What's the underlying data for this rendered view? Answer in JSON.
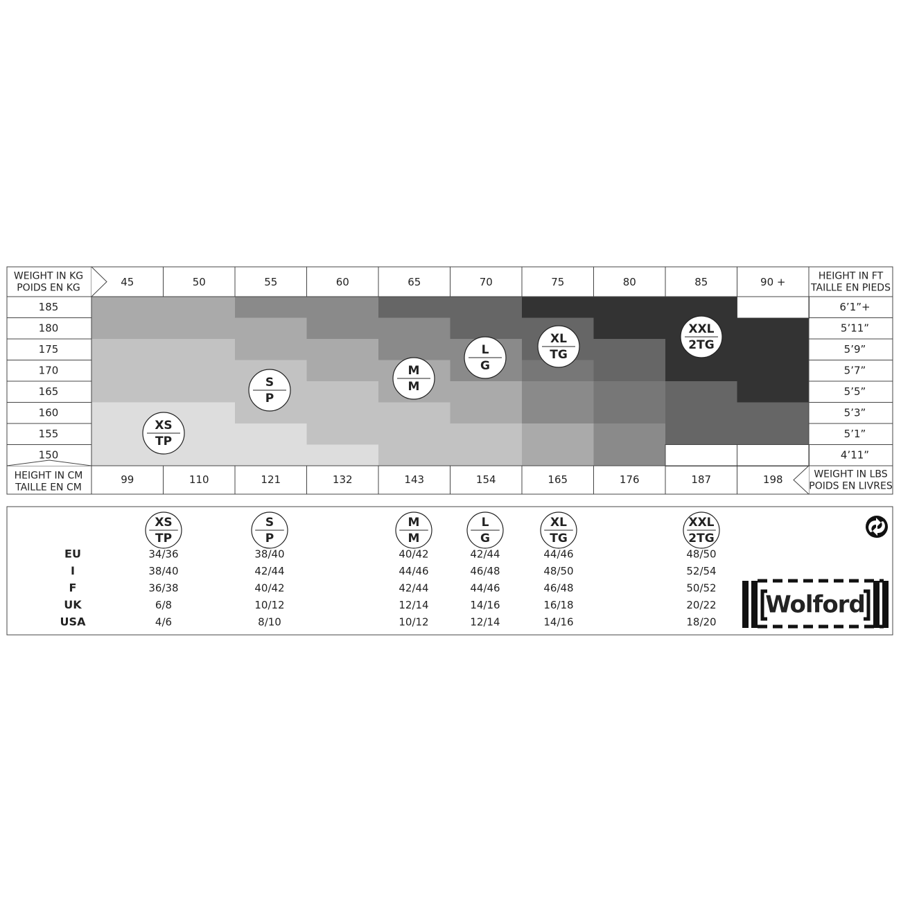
{
  "weight_table": {
    "header_left": [
      "WEIGHT IN KG",
      "POIDS EN KG"
    ],
    "header_right": [
      "HEIGHT IN FT",
      "TAILLE EN PIEDS"
    ],
    "kg": [
      "45",
      "50",
      "55",
      "60",
      "65",
      "70",
      "75",
      "80",
      "85",
      "90 +"
    ],
    "cm": [
      "185",
      "180",
      "175",
      "170",
      "165",
      "160",
      "155",
      "150"
    ],
    "ft": [
      "6’1”+",
      "5’11”",
      "5’9”",
      "5’7”",
      "5’5”",
      "5’3”",
      "5’1”",
      "4’11”"
    ],
    "footer_left": [
      "HEIGHT IN CM",
      "TAILLE EN CM"
    ],
    "lbs": [
      "99",
      "110",
      "121",
      "132",
      "143",
      "154",
      "165",
      "176",
      "187",
      "198"
    ],
    "footer_right": [
      "WEIGHT IN LBS",
      "POIDS EN LIVRES"
    ]
  },
  "sizes": [
    {
      "top": "XS",
      "bottom": "TP"
    },
    {
      "top": "S",
      "bottom": "P"
    },
    {
      "top": "M",
      "bottom": "M"
    },
    {
      "top": "L",
      "bottom": "G"
    },
    {
      "top": "XL",
      "bottom": "TG"
    },
    {
      "top": "XXL",
      "bottom": "2TG"
    }
  ],
  "conversion": {
    "rows": [
      {
        "label": "EU",
        "values": [
          "34/36",
          "38/40",
          "40/42",
          "42/44",
          "44/46",
          "48/50"
        ]
      },
      {
        "label": "I",
        "values": [
          "38/40",
          "42/44",
          "44/46",
          "46/48",
          "48/50",
          "52/54"
        ]
      },
      {
        "label": "F",
        "values": [
          "36/38",
          "40/42",
          "42/44",
          "44/46",
          "46/48",
          "50/52"
        ]
      },
      {
        "label": "UK",
        "values": [
          "6/8",
          "10/12",
          "12/14",
          "14/16",
          "16/18",
          "20/22"
        ]
      },
      {
        "label": "USA",
        "values": [
          "4/6",
          "8/10",
          "10/12",
          "12/14",
          "14/16",
          "18/20"
        ]
      }
    ]
  },
  "logo": "Wolford"
}
